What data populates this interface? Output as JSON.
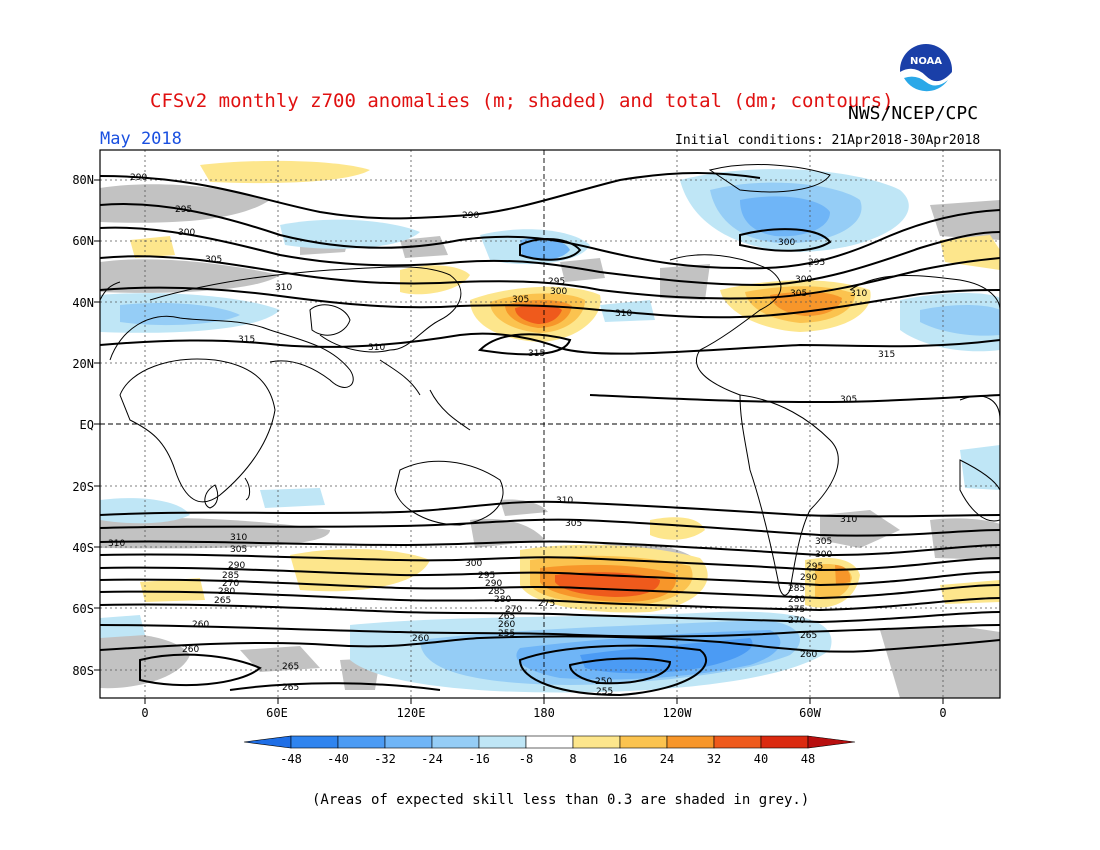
{
  "title": "CFSv2 monthly z700 anomalies (m; shaded) and total (dm; contours)",
  "agency": "NWS/NCEP/CPC",
  "month_label": "May 2018",
  "initial_conditions": "Initial conditions: 21Apr2018-30Apr2018",
  "footnote": "(Areas of expected skill less than 0.3 are shaded in grey.)",
  "logo_text": "NOAA",
  "lat_labels": [
    "80N",
    "60N",
    "40N",
    "20N",
    "EQ",
    "20S",
    "40S",
    "60S",
    "80S"
  ],
  "lon_labels": [
    "0",
    "60E",
    "120E",
    "180",
    "120W",
    "60W",
    "0"
  ],
  "colorbar": {
    "labels": [
      "-48",
      "-40",
      "-32",
      "-24",
      "-16",
      "-8",
      "8",
      "16",
      "24",
      "32",
      "40",
      "48"
    ],
    "colors": [
      "#1e6ee6",
      "#2f84ef",
      "#4b9bf4",
      "#6fb5f7",
      "#95cdf6",
      "#bfe6f6",
      "#ffffff",
      "#fde68c",
      "#fbc34f",
      "#f7962a",
      "#ef5a1c",
      "#db2a10",
      "#b80f0f"
    ]
  },
  "contour_labels": [
    "290",
    "295",
    "300",
    "305",
    "310",
    "315",
    "300",
    "305",
    "310",
    "315",
    "290",
    "295",
    "300",
    "305",
    "310",
    "315",
    "310",
    "305",
    "300",
    "295",
    "290",
    "285",
    "280",
    "275",
    "270",
    "265",
    "260",
    "255",
    "250",
    "310",
    "305",
    "300",
    "295",
    "290",
    "285",
    "280",
    "275",
    "270",
    "265",
    "260",
    "255",
    "260",
    "265",
    "270",
    "275",
    "280",
    "285",
    "290",
    "295",
    "300",
    "305",
    "310"
  ]
}
